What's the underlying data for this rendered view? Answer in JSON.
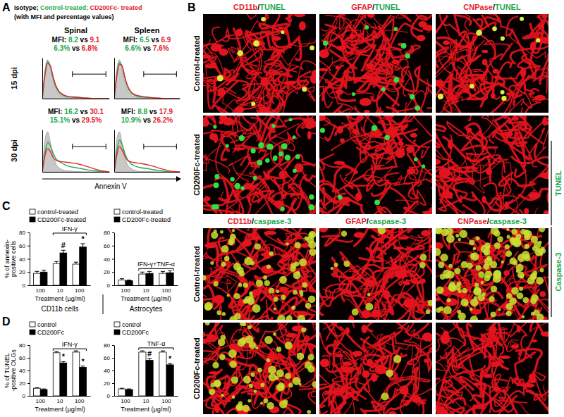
{
  "panel_a": {
    "label": "A",
    "legend_title": [
      {
        "text": "Isotype; ",
        "color": "#000000"
      },
      {
        "text": "Control-treated; ",
        "color": "#1fa84f"
      },
      {
        "text": "CD200Fc- treated",
        "color": "#e3262f"
      }
    ],
    "legend_note": "(with MFI and percentage values)",
    "xlabel": "Annexin V"
  },
  "panel_b": {
    "label": "B",
    "tunel_headers": [
      [
        {
          "text": "CD11b",
          "color": "#e3262f"
        },
        {
          "text": "/",
          "color": "#000000"
        },
        {
          "text": "TUNEL",
          "color": "#1fa84f"
        }
      ],
      [
        {
          "text": "GFAP",
          "color": "#e3262f"
        },
        {
          "text": "/",
          "color": "#000000"
        },
        {
          "text": "TUNEL",
          "color": "#1fa84f"
        }
      ],
      [
        {
          "text": "CNPase",
          "color": "#e3262f"
        },
        {
          "text": "/",
          "color": "#000000"
        },
        {
          "text": "TUNEL",
          "color": "#1fa84f"
        }
      ]
    ],
    "caspase_headers": [
      [
        {
          "text": "CD11b",
          "color": "#e3262f"
        },
        {
          "text": "/",
          "color": "#000000"
        },
        {
          "text": "caspase-3",
          "color": "#1fa84f"
        }
      ],
      [
        {
          "text": "GFAP",
          "color": "#e3262f"
        },
        {
          "text": "/",
          "color": "#000000"
        },
        {
          "text": "caspase-3",
          "color": "#1fa84f"
        }
      ],
      [
        {
          "text": "CNPase",
          "color": "#e3262f"
        },
        {
          "text": "/",
          "color": "#000000"
        },
        {
          "text": "caspase-3",
          "color": "#1fa84f"
        }
      ]
    ],
    "row_labels": [
      "Control-treated",
      "CD200Fc-treated",
      "Control-treated",
      "CD200Fc-treated"
    ],
    "side_labels": [
      {
        "text": "TUNEL",
        "color": "#1fa84f"
      },
      {
        "text": "Caspase-3",
        "color": "#1fa84f"
      }
    ]
  },
  "panel_c": {
    "label": "C"
  },
  "panel_d": {
    "label": "D"
  },
  "chart_data": [
    {
      "type": "line",
      "title": "Spinal",
      "ylabel": "15 dpi",
      "tick_labels": false,
      "xlim": [
        0,
        100
      ],
      "ylim": [
        0,
        100
      ],
      "x": [
        0,
        4,
        8,
        12,
        16,
        20,
        25,
        30,
        35,
        40,
        50,
        60,
        70,
        80,
        90,
        100
      ],
      "series": [
        {
          "type": "area",
          "color": "#c8c8c8",
          "values": [
            0,
            70,
            95,
            75,
            45,
            25,
            12,
            6,
            3,
            2,
            1,
            0,
            0,
            0,
            0,
            0
          ]
        },
        {
          "color": "#1fa84f",
          "values": [
            0,
            62,
            90,
            80,
            52,
            30,
            16,
            9,
            6,
            4,
            3,
            2,
            1,
            0,
            0,
            0
          ]
        },
        {
          "color": "#e3262f",
          "values": [
            0,
            58,
            86,
            80,
            55,
            33,
            18,
            11,
            7,
            5,
            4,
            2,
            1,
            0,
            0,
            0
          ]
        }
      ],
      "gate": {
        "x": [
          45,
          95
        ],
        "y": 60
      },
      "annotations": [
        [
          {
            "text": "MFI: ",
            "color": "#000000"
          },
          {
            "text": "8.2",
            "color": "#1fa84f"
          },
          {
            "text": " vs ",
            "color": "#000000"
          },
          {
            "text": "9.1",
            "color": "#e3262f"
          }
        ],
        [
          {
            "text": "6.3%",
            "color": "#1fa84f"
          },
          {
            "text": " vs ",
            "color": "#000000"
          },
          {
            "text": "6.8%",
            "color": "#e3262f"
          }
        ]
      ]
    },
    {
      "type": "line",
      "title": "Spleen",
      "tick_labels": false,
      "xlim": [
        0,
        100
      ],
      "ylim": [
        0,
        100
      ],
      "x": [
        0,
        4,
        8,
        12,
        16,
        20,
        25,
        30,
        35,
        40,
        50,
        60,
        70,
        80,
        90,
        100
      ],
      "series": [
        {
          "type": "area",
          "color": "#c8c8c8",
          "values": [
            0,
            72,
            95,
            72,
            42,
            22,
            10,
            5,
            3,
            2,
            1,
            0,
            0,
            0,
            0,
            0
          ]
        },
        {
          "color": "#1fa84f",
          "values": [
            0,
            60,
            88,
            80,
            52,
            30,
            15,
            9,
            6,
            4,
            3,
            2,
            1,
            0,
            0,
            0
          ]
        },
        {
          "color": "#e3262f",
          "values": [
            0,
            55,
            84,
            80,
            55,
            33,
            18,
            11,
            8,
            6,
            4,
            2,
            1,
            0,
            0,
            0
          ]
        }
      ],
      "gate": {
        "x": [
          45,
          95
        ],
        "y": 60
      },
      "annotations": [
        [
          {
            "text": "MFI: ",
            "color": "#000000"
          },
          {
            "text": "6.5",
            "color": "#1fa84f"
          },
          {
            "text": " vs ",
            "color": "#000000"
          },
          {
            "text": "6.9",
            "color": "#e3262f"
          }
        ],
        [
          {
            "text": "6.6%",
            "color": "#1fa84f"
          },
          {
            "text": " vs ",
            "color": "#000000"
          },
          {
            "text": "7.6%",
            "color": "#e3262f"
          }
        ]
      ]
    },
    {
      "type": "line",
      "ylabel": "30 dpi",
      "tick_labels": false,
      "xlim": [
        0,
        100
      ],
      "ylim": [
        0,
        100
      ],
      "x": [
        0,
        4,
        8,
        12,
        16,
        20,
        25,
        30,
        35,
        40,
        50,
        60,
        70,
        80,
        90,
        100
      ],
      "series": [
        {
          "type": "area",
          "color": "#c8c8c8",
          "values": [
            0,
            75,
            95,
            70,
            40,
            20,
            10,
            5,
            3,
            2,
            1,
            0,
            0,
            0,
            0,
            0
          ]
        },
        {
          "color": "#1fa84f",
          "values": [
            0,
            45,
            70,
            62,
            45,
            32,
            25,
            20,
            16,
            13,
            10,
            7,
            4,
            2,
            1,
            0
          ]
        },
        {
          "color": "#e3262f",
          "values": [
            0,
            38,
            55,
            48,
            35,
            28,
            25,
            24,
            23,
            22,
            20,
            16,
            11,
            6,
            2,
            0
          ]
        }
      ],
      "gate": {
        "x": [
          45,
          95
        ],
        "y": 60
      },
      "annotations": [
        [
          {
            "text": "MFI: ",
            "color": "#000000"
          },
          {
            "text": "16.2",
            "color": "#1fa84f"
          },
          {
            "text": " vs ",
            "color": "#000000"
          },
          {
            "text": "30.1",
            "color": "#e3262f"
          }
        ],
        [
          {
            "text": "15.1%",
            "color": "#1fa84f"
          },
          {
            "text": " vs ",
            "color": "#000000"
          },
          {
            "text": "29.5%",
            "color": "#e3262f"
          }
        ]
      ]
    },
    {
      "type": "line",
      "tick_labels": false,
      "xlim": [
        0,
        100
      ],
      "ylim": [
        0,
        100
      ],
      "x": [
        0,
        4,
        8,
        12,
        16,
        20,
        25,
        30,
        35,
        40,
        50,
        60,
        70,
        80,
        90,
        100
      ],
      "series": [
        {
          "type": "area",
          "color": "#c8c8c8",
          "values": [
            0,
            78,
            95,
            68,
            38,
            18,
            9,
            4,
            2,
            1,
            1,
            0,
            0,
            0,
            0,
            0
          ]
        },
        {
          "color": "#1fa84f",
          "values": [
            0,
            50,
            75,
            65,
            45,
            30,
            20,
            15,
            12,
            10,
            8,
            5,
            3,
            1,
            0,
            0
          ]
        },
        {
          "color": "#e3262f",
          "values": [
            0,
            40,
            60,
            52,
            38,
            28,
            24,
            22,
            21,
            20,
            17,
            13,
            8,
            4,
            1,
            0
          ]
        }
      ],
      "gate": {
        "x": [
          45,
          95
        ],
        "y": 60
      },
      "annotations": [
        [
          {
            "text": "MFI: ",
            "color": "#000000"
          },
          {
            "text": "8.8",
            "color": "#1fa84f"
          },
          {
            "text": " vs ",
            "color": "#000000"
          },
          {
            "text": "17.9",
            "color": "#e3262f"
          }
        ],
        [
          {
            "text": "10.9%",
            "color": "#1fa84f"
          },
          {
            "text": " vs ",
            "color": "#000000"
          },
          {
            "text": "26.2%",
            "color": "#e3262f"
          }
        ]
      ]
    },
    {
      "type": "bar",
      "ylabel": [
        "% of annexin-",
        "positive cells"
      ],
      "xlabel": "Treatment (µg/ml)",
      "subtitle": "CD11b cells",
      "legend": "upper left",
      "categories": [
        "100",
        "10",
        "100"
      ],
      "ylim": [
        0,
        80
      ],
      "yticks": [
        0,
        20,
        40,
        60,
        80
      ],
      "series": [
        {
          "name": "control-treated",
          "color": "#ffffff",
          "values": [
            18,
            33,
            32
          ],
          "errors": [
            3,
            3,
            3
          ]
        },
        {
          "name": "CD200Fc-treated",
          "color": "#000000",
          "values": [
            20,
            49,
            58
          ],
          "errors": [
            3,
            4,
            5
          ],
          "significance": [
            null,
            "#",
            "*"
          ]
        }
      ],
      "bracket": {
        "label": "IFN-γ",
        "from": 1,
        "to": 2
      }
    },
    {
      "type": "bar",
      "xlabel": "Treatment (µg/ml)",
      "subtitle": "Astrocytes",
      "legend": "upper left",
      "categories": [
        "100",
        "10",
        "100"
      ],
      "ylim": [
        0,
        80
      ],
      "yticks": [
        0,
        20,
        40,
        60,
        80
      ],
      "series": [
        {
          "name": "control-treated",
          "color": "#ffffff",
          "values": [
            8,
            17,
            18
          ],
          "errors": [
            2,
            3,
            3
          ]
        },
        {
          "name": "CD200Fc-treated",
          "color": "#000000",
          "values": [
            7,
            18,
            19
          ],
          "errors": [
            1,
            3,
            3
          ]
        }
      ],
      "bracket": {
        "label": "IFN-γ+TNF-α",
        "from": 1,
        "to": 2
      }
    },
    {
      "type": "bar",
      "ylabel": [
        "% of TUNEL",
        "-positive OLGs"
      ],
      "xlabel": "Treatment (µg/ml)",
      "legend": "upper left",
      "categories": [
        "100",
        "10",
        "100"
      ],
      "ylim": [
        0,
        80
      ],
      "yticks": [
        0,
        20,
        40,
        60,
        80
      ],
      "series": [
        {
          "name": "control",
          "color": "#ffffff",
          "values": [
            12,
            68,
            69
          ],
          "errors": [
            1,
            2,
            2
          ]
        },
        {
          "name": "CD200Fc",
          "color": "#000000",
          "values": [
            10,
            52,
            45
          ],
          "errors": [
            1,
            2,
            2
          ],
          "significance": [
            null,
            "*",
            "*"
          ]
        }
      ],
      "bracket": {
        "label": "IFN-γ",
        "from": 1,
        "to": 2
      }
    },
    {
      "type": "bar",
      "xlabel": "Treatment (µg/ml)",
      "legend": "upper left",
      "categories": [
        "100",
        "10",
        "100"
      ],
      "ylim": [
        0,
        80
      ],
      "yticks": [
        0,
        20,
        40,
        60,
        80
      ],
      "series": [
        {
          "name": "control",
          "color": "#ffffff",
          "values": [
            11,
            69,
            69
          ],
          "errors": [
            1,
            2,
            2
          ]
        },
        {
          "name": "CD200Fc",
          "color": "#000000",
          "values": [
            10,
            56,
            49
          ],
          "errors": [
            1,
            3,
            2
          ],
          "significance": [
            null,
            "#",
            "*"
          ]
        }
      ],
      "bracket": {
        "label": "TNF-α",
        "from": 1,
        "to": 2
      }
    }
  ]
}
